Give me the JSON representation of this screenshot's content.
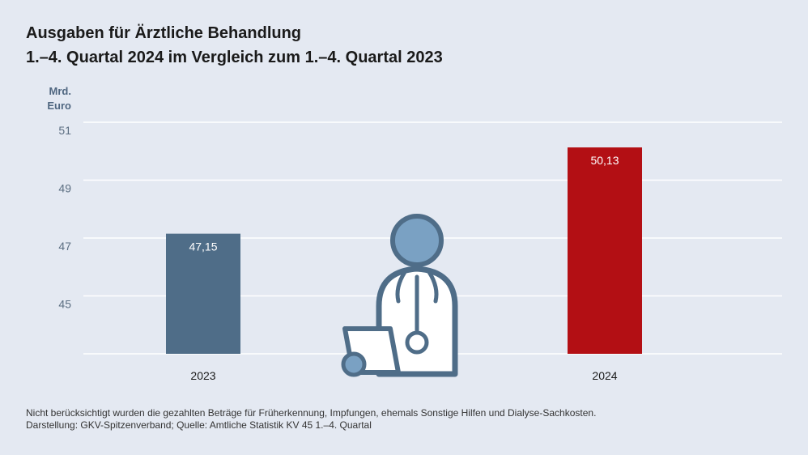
{
  "title_line1": "Ausgaben für Ärztliche Behandlung",
  "title_line2": "1.–4. Quartal 2024 im Vergleich zum 1.–4. Quartal 2023",
  "footnote_line1": "Nicht berücksichtigt wurden die gezahlten Beträge für Früherkennung, Impfungen, ehemals Sonstige Hilfen und Dialyse-Sachkosten.",
  "footnote_line2": "Darstellung: GKV-Spitzenverband; Quelle: Amtliche Statistik KV 45 1.–4. Quartal",
  "illustration_icon": "doctor-with-stethoscope-and-clipboard-icon",
  "chart_data": {
    "type": "bar",
    "categories": [
      "2023",
      "2024"
    ],
    "values": [
      47.15,
      50.13
    ],
    "value_labels": [
      "47,15",
      "50,13"
    ],
    "ylabel_line1": "Mrd.",
    "ylabel_line2": "Euro",
    "yticks": [
      "45",
      "47",
      "49",
      "51"
    ],
    "ylim": [
      43,
      51
    ],
    "grid": true,
    "colors": [
      "#4f6d88",
      "#b30f14"
    ]
  }
}
